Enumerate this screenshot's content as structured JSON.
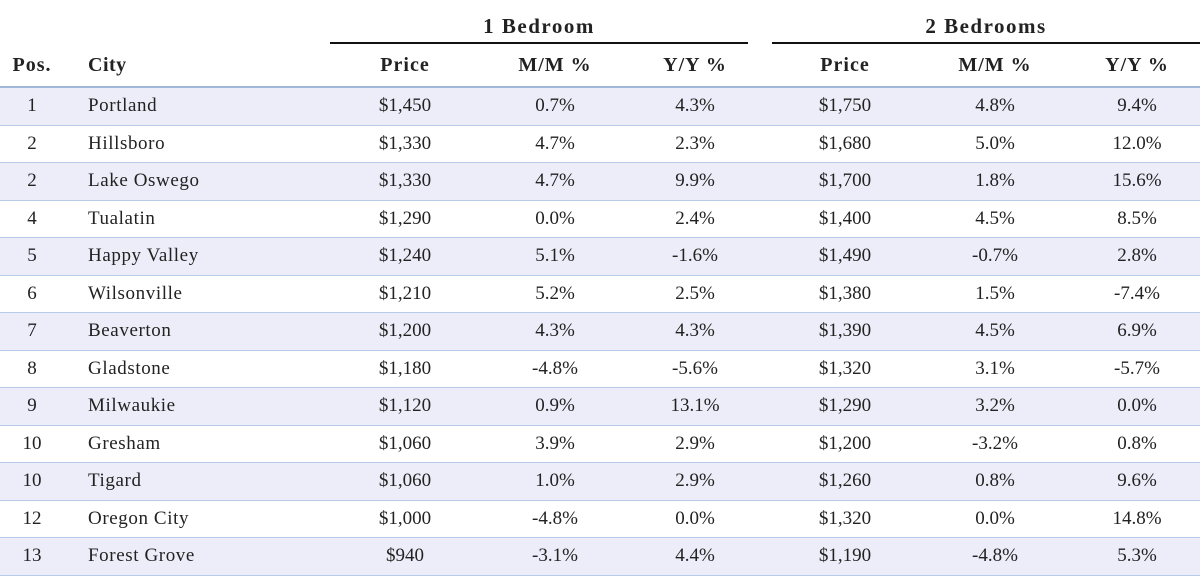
{
  "groups": {
    "one_bedroom": "1 Bedroom",
    "two_bedrooms": "2 Bedrooms"
  },
  "headers": {
    "pos": "Pos.",
    "city": "City",
    "price1": "Price",
    "mm1": "M/M %",
    "yy1": "Y/Y %",
    "price2": "Price",
    "mm2": "M/M %",
    "yy2": "Y/Y %"
  },
  "rows": [
    {
      "pos": "1",
      "city": "Portland",
      "p1": "$1,450",
      "m1": "0.7%",
      "y1": "4.3%",
      "p2": "$1,750",
      "m2": "4.8%",
      "y2": "9.4%"
    },
    {
      "pos": "2",
      "city": "Hillsboro",
      "p1": "$1,330",
      "m1": "4.7%",
      "y1": "2.3%",
      "p2": "$1,680",
      "m2": "5.0%",
      "y2": "12.0%"
    },
    {
      "pos": "2",
      "city": "Lake Oswego",
      "p1": "$1,330",
      "m1": "4.7%",
      "y1": "9.9%",
      "p2": "$1,700",
      "m2": "1.8%",
      "y2": "15.6%"
    },
    {
      "pos": "4",
      "city": "Tualatin",
      "p1": "$1,290",
      "m1": "0.0%",
      "y1": "2.4%",
      "p2": "$1,400",
      "m2": "4.5%",
      "y2": "8.5%"
    },
    {
      "pos": "5",
      "city": "Happy Valley",
      "p1": "$1,240",
      "m1": "5.1%",
      "y1": "-1.6%",
      "p2": "$1,490",
      "m2": "-0.7%",
      "y2": "2.8%"
    },
    {
      "pos": "6",
      "city": "Wilsonville",
      "p1": "$1,210",
      "m1": "5.2%",
      "y1": "2.5%",
      "p2": "$1,380",
      "m2": "1.5%",
      "y2": "-7.4%"
    },
    {
      "pos": "7",
      "city": "Beaverton",
      "p1": "$1,200",
      "m1": "4.3%",
      "y1": "4.3%",
      "p2": "$1,390",
      "m2": "4.5%",
      "y2": "6.9%"
    },
    {
      "pos": "8",
      "city": "Gladstone",
      "p1": "$1,180",
      "m1": "-4.8%",
      "y1": "-5.6%",
      "p2": "$1,320",
      "m2": "3.1%",
      "y2": "-5.7%"
    },
    {
      "pos": "9",
      "city": "Milwaukie",
      "p1": "$1,120",
      "m1": "0.9%",
      "y1": "13.1%",
      "p2": "$1,290",
      "m2": "3.2%",
      "y2": "0.0%"
    },
    {
      "pos": "10",
      "city": "Gresham",
      "p1": "$1,060",
      "m1": "3.9%",
      "y1": "2.9%",
      "p2": "$1,200",
      "m2": "-3.2%",
      "y2": "0.8%"
    },
    {
      "pos": "10",
      "city": "Tigard",
      "p1": "$1,060",
      "m1": "1.0%",
      "y1": "2.9%",
      "p2": "$1,260",
      "m2": "0.8%",
      "y2": "9.6%"
    },
    {
      "pos": "12",
      "city": "Oregon City",
      "p1": "$1,000",
      "m1": "-4.8%",
      "y1": "0.0%",
      "p2": "$1,320",
      "m2": "0.0%",
      "y2": "14.8%"
    },
    {
      "pos": "13",
      "city": "Forest Grove",
      "p1": "$940",
      "m1": "-3.1%",
      "y1": "4.4%",
      "p2": "$1,190",
      "m2": "-4.8%",
      "y2": "5.3%"
    }
  ],
  "colors": {
    "shaded_row": "#ecedf8",
    "row_divider": "#b8cbe6",
    "header_rule": "#111111"
  }
}
